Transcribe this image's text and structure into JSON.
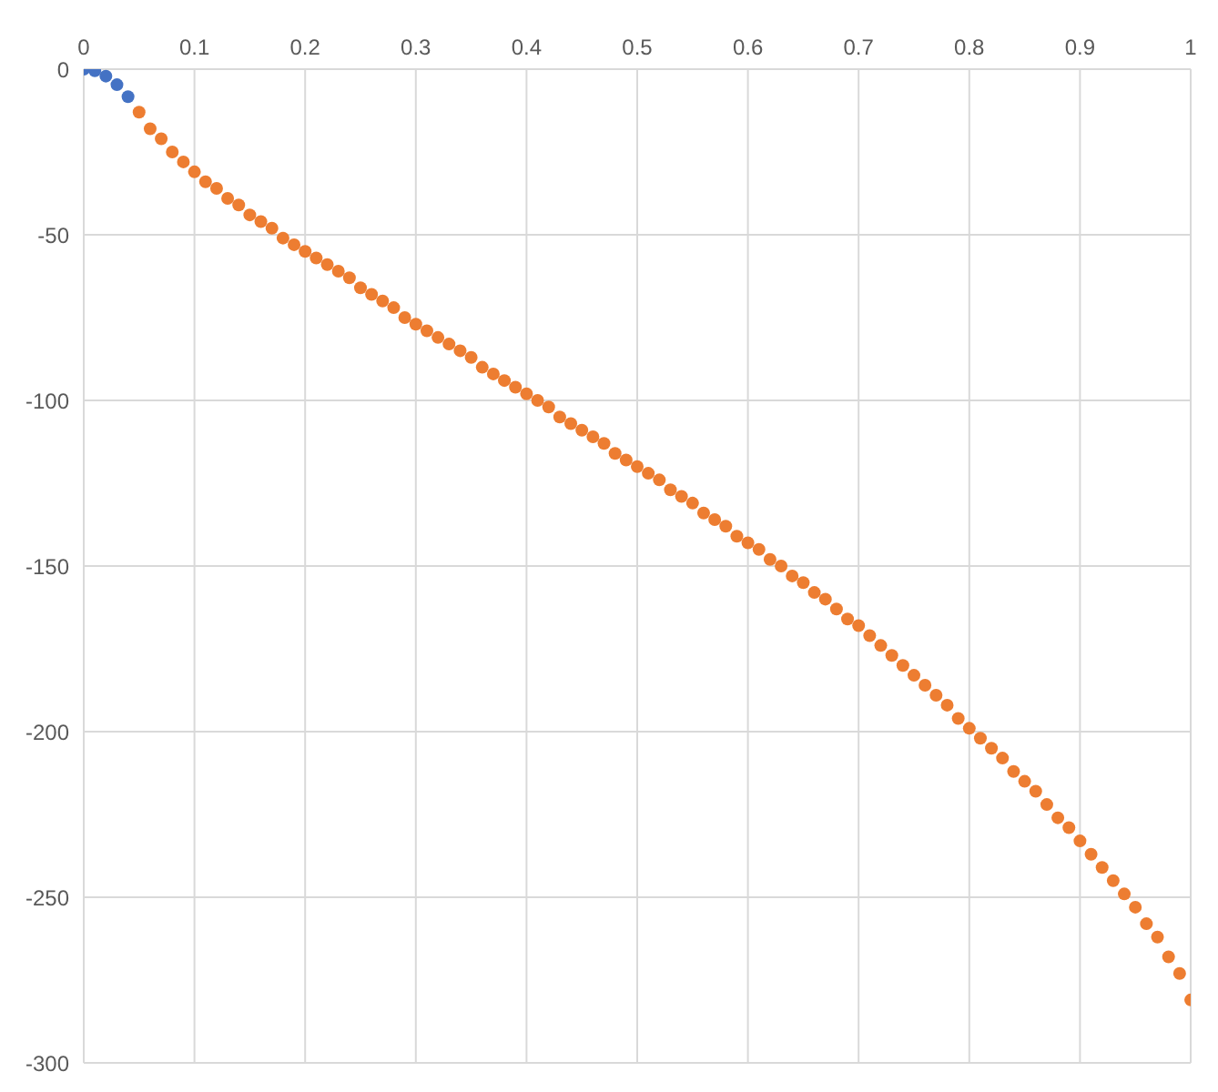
{
  "chart_data": {
    "type": "scatter",
    "marker": "circle",
    "grid": true,
    "xlim": [
      0,
      1
    ],
    "xticks": [
      0,
      0.1,
      0.2,
      0.3,
      0.4,
      0.5,
      0.6,
      0.7,
      0.8,
      0.9,
      1
    ],
    "ylim": [
      -300,
      0
    ],
    "yticks": [
      -300,
      -250,
      -200,
      -150,
      -100,
      -50,
      0
    ],
    "series": [
      {
        "color": "#4472c4",
        "x": [
          0,
          0.01,
          0.02,
          0.03,
          0.04
        ],
        "values": [
          0,
          -0.5,
          -2.1,
          -4.7,
          -8.3
        ]
      },
      {
        "color": "#ed7d31",
        "x": [
          0.05,
          0.06,
          0.07,
          0.08,
          0.09,
          0.1,
          0.11,
          0.12,
          0.13,
          0.14,
          0.15,
          0.16,
          0.17,
          0.18,
          0.19,
          0.2,
          0.21,
          0.22,
          0.23,
          0.24,
          0.25,
          0.26,
          0.27,
          0.28,
          0.29,
          0.3,
          0.31,
          0.32,
          0.33,
          0.34,
          0.35,
          0.36,
          0.37,
          0.38,
          0.39,
          0.4,
          0.41,
          0.42,
          0.43,
          0.44,
          0.45,
          0.46,
          0.47,
          0.48,
          0.49,
          0.5,
          0.51,
          0.52,
          0.53,
          0.54,
          0.55,
          0.56,
          0.57,
          0.58,
          0.59,
          0.6,
          0.61,
          0.62,
          0.63,
          0.64,
          0.65,
          0.66,
          0.67,
          0.68,
          0.69,
          0.7,
          0.71,
          0.72,
          0.73,
          0.74,
          0.75,
          0.76,
          0.77,
          0.78,
          0.79,
          0.8,
          0.81,
          0.82,
          0.83,
          0.84,
          0.85,
          0.86,
          0.87,
          0.88,
          0.89,
          0.9,
          0.91,
          0.92,
          0.93,
          0.94,
          0.95,
          0.96,
          0.97,
          0.98,
          0.99,
          1
        ],
        "values": [
          -13,
          -18,
          -21,
          -25,
          -28,
          -31,
          -34,
          -36,
          -39,
          -41,
          -44,
          -46,
          -48,
          -51,
          -53,
          -55,
          -57,
          -59,
          -61,
          -63,
          -66,
          -68,
          -70,
          -72,
          -75,
          -77,
          -79,
          -81,
          -83,
          -85,
          -87,
          -90,
          -92,
          -94,
          -96,
          -98,
          -100,
          -102,
          -105,
          -107,
          -109,
          -111,
          -113,
          -116,
          -118,
          -120,
          -122,
          -124,
          -127,
          -129,
          -131,
          -134,
          -136,
          -138,
          -141,
          -143,
          -145,
          -148,
          -150,
          -153,
          -155,
          -158,
          -160,
          -163,
          -166,
          -168,
          -171,
          -174,
          -177,
          -180,
          -183,
          -186,
          -189,
          -192,
          -196,
          -199,
          -202,
          -205,
          -208,
          -212,
          -215,
          -218,
          -222,
          -226,
          -229,
          -233,
          -237,
          -241,
          -245,
          -249,
          -253,
          -258,
          -262,
          -268,
          -273,
          -281
        ]
      }
    ]
  }
}
